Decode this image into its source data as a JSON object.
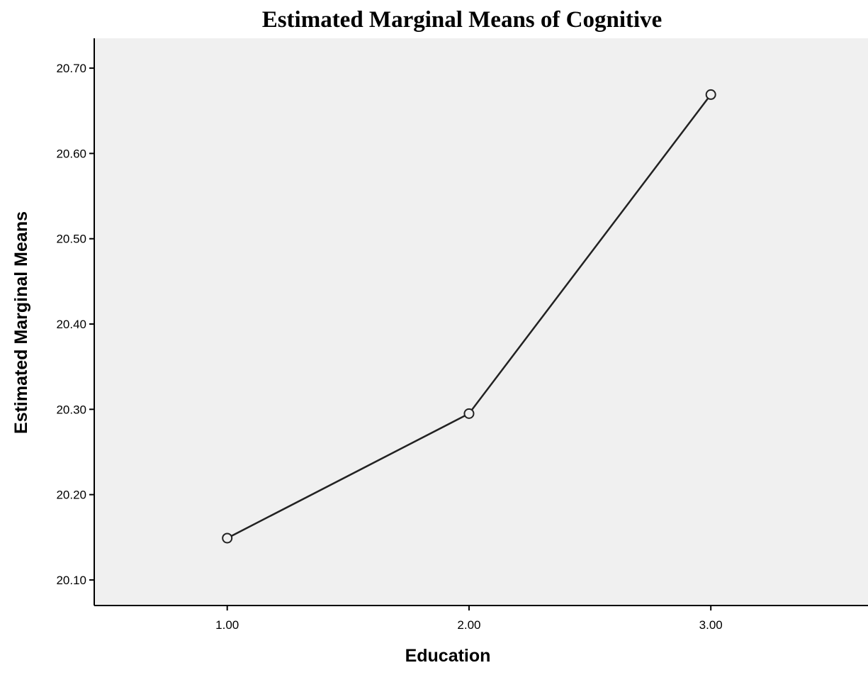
{
  "chart_data": {
    "type": "line",
    "title": "Estimated Marginal Means of Cognitive",
    "xlabel": "Education",
    "ylabel": "Estimated Marginal Means",
    "categories": [
      "1.00",
      "2.00",
      "3.00"
    ],
    "x": [
      1.0,
      2.0,
      3.0
    ],
    "xlim": [
      0.45,
      3.65
    ],
    "ylim": [
      20.07,
      20.735
    ],
    "yticks": [
      20.1,
      20.2,
      20.3,
      20.4,
      20.5,
      20.6,
      20.7
    ],
    "ytick_labels": [
      "20.10",
      "20.20",
      "20.30",
      "20.40",
      "20.50",
      "20.60",
      "20.70"
    ],
    "series": [
      {
        "values": [
          20.149,
          20.295,
          20.669
        ]
      }
    ],
    "grid": false,
    "legend": "none",
    "colors": {
      "plot_background": "#f0f0f0",
      "line": "#222222",
      "marker": "#222222"
    },
    "marker": "open-circle"
  }
}
